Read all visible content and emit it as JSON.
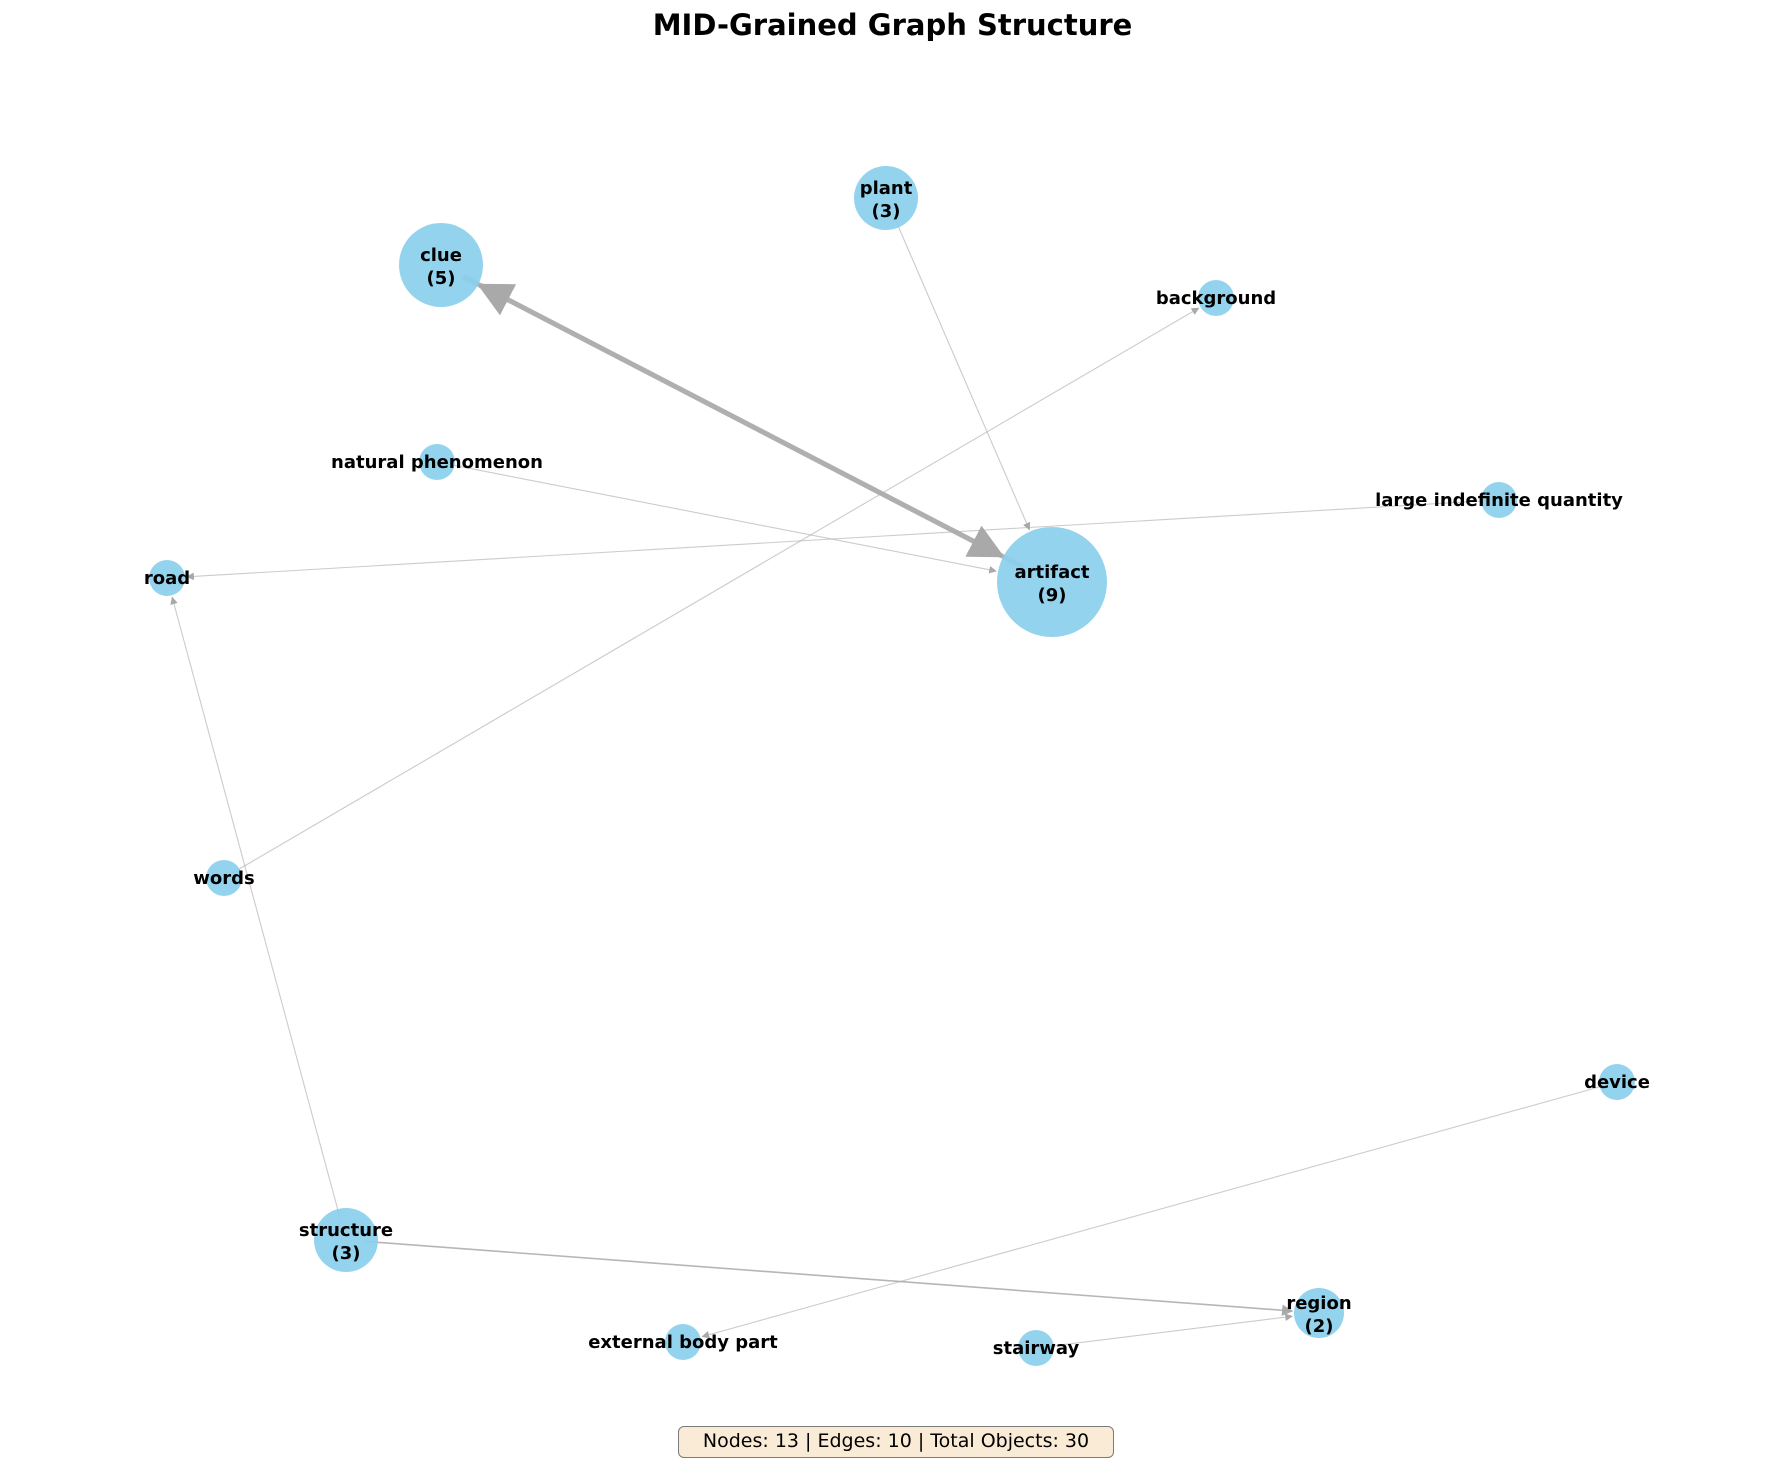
{
  "title": "MID-Grained Graph Structure",
  "stats": "Nodes: 13 | Edges: 10 | Total Objects: 30",
  "colors": {
    "node": "#87ceeb",
    "edge": "#a9a9a9",
    "stats_box": "#faebd7"
  },
  "nodes": [
    {
      "id": "clue",
      "name": "clue",
      "count": "(5)"
    },
    {
      "id": "plant",
      "name": "plant",
      "count": "(3)"
    },
    {
      "id": "background",
      "name": "background",
      "count": ""
    },
    {
      "id": "natural-phenomenon",
      "name": "natural phenomenon",
      "count": ""
    },
    {
      "id": "large-indefinite-quantity",
      "name": "large indefinite quantity",
      "count": ""
    },
    {
      "id": "road",
      "name": "road",
      "count": ""
    },
    {
      "id": "artifact",
      "name": "artifact",
      "count": "(9)"
    },
    {
      "id": "words",
      "name": "words",
      "count": ""
    },
    {
      "id": "device",
      "name": "device",
      "count": ""
    },
    {
      "id": "structure",
      "name": "structure",
      "count": "(3)"
    },
    {
      "id": "region",
      "name": "region",
      "count": "(2)"
    },
    {
      "id": "external-body-part",
      "name": "external body part",
      "count": ""
    },
    {
      "id": "stairway",
      "name": "stairway",
      "count": ""
    }
  ],
  "edges": [
    {
      "from": "clue",
      "to": "artifact",
      "weight": "heavy"
    },
    {
      "from": "plant",
      "to": "artifact",
      "weight": "light"
    },
    {
      "from": "natural-phenomenon",
      "to": "artifact",
      "weight": "light"
    },
    {
      "from": "words",
      "to": "background",
      "weight": "light"
    },
    {
      "from": "large-indefinite-quantity",
      "to": "road",
      "weight": "light"
    },
    {
      "from": "structure",
      "to": "road",
      "weight": "light"
    },
    {
      "from": "structure",
      "to": "region",
      "weight": "medium"
    },
    {
      "from": "stairway",
      "to": "region",
      "weight": "light"
    },
    {
      "from": "device",
      "to": "external-body-part",
      "weight": "light"
    },
    {
      "from": "artifact",
      "to": "clue",
      "weight": "heavy"
    }
  ]
}
